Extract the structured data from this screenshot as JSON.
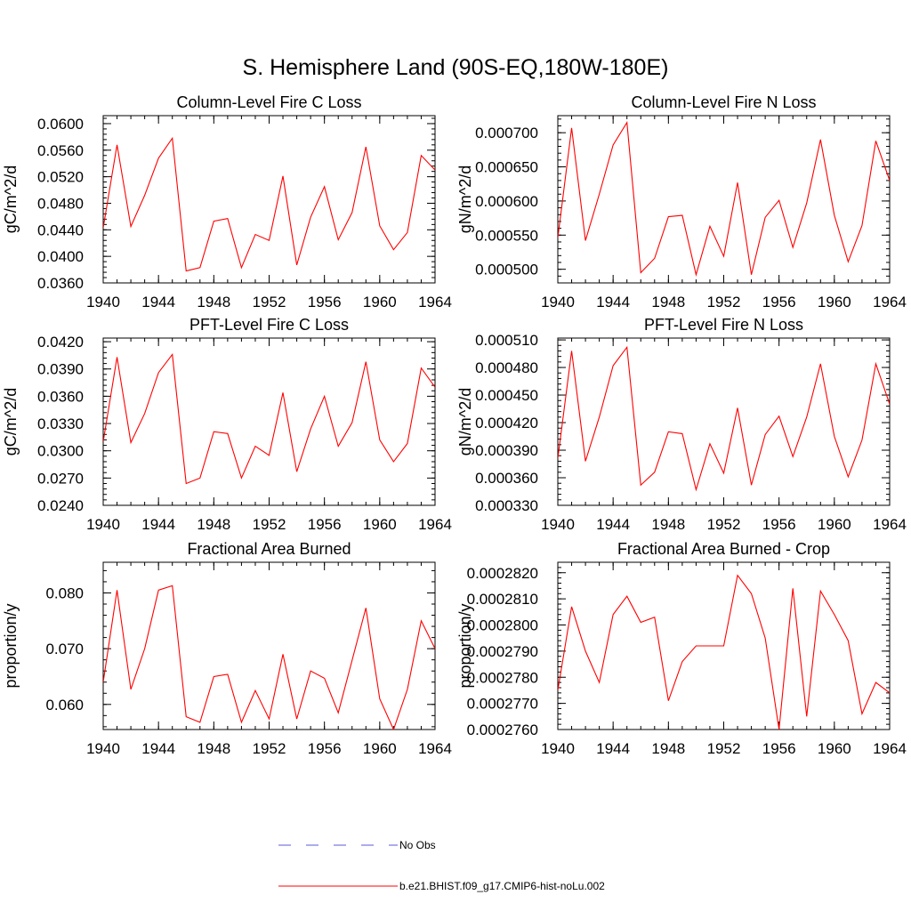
{
  "figure": {
    "title": "S. Hemisphere Land (90S-EQ,180W-180E)"
  },
  "colors": {
    "model": "#ff0000",
    "obs": "#5a5ad8",
    "axis": "#000000"
  },
  "legend": {
    "placement": "bottom-center",
    "entries": [
      {
        "label": "No Obs",
        "style": "dashed",
        "color": "#5a5ad8"
      },
      {
        "label": "b.e21.BHIST.f09_g17.CMIP6-hist-noLu.002",
        "style": "solid",
        "color": "#ff0000"
      }
    ]
  },
  "chart_data": [
    {
      "type": "line",
      "title": "Column-Level Fire C Loss",
      "xlabel": "",
      "ylabel": "gC/m^2/d",
      "xlim": [
        1940,
        1964
      ],
      "ylim": [
        0.036,
        0.0612
      ],
      "xticks": [
        1940,
        1944,
        1948,
        1952,
        1956,
        1960,
        1964
      ],
      "xtick_labels": [
        "1940",
        "1944",
        "1948",
        "1952",
        "1956",
        "1960",
        "1964"
      ],
      "yticks": [
        0.036,
        0.04,
        0.044,
        0.048,
        0.052,
        0.056,
        0.06
      ],
      "ytick_labels": [
        "0.0360",
        "0.0400",
        "0.0440",
        "0.0480",
        "0.0520",
        "0.0560",
        "0.0600"
      ],
      "x": [
        1940,
        1941,
        1942,
        1943,
        1944,
        1945,
        1946,
        1947,
        1948,
        1949,
        1950,
        1951,
        1952,
        1953,
        1954,
        1955,
        1956,
        1957,
        1958,
        1959,
        1960,
        1961,
        1962,
        1963,
        1964
      ],
      "series": [
        {
          "name": "b.e21.BHIST.f09_g17.CMIP6-hist-noLu.002",
          "values": [
            0.0443,
            0.0568,
            0.0445,
            0.0492,
            0.0548,
            0.0578,
            0.0378,
            0.0383,
            0.0453,
            0.0457,
            0.0383,
            0.0433,
            0.0424,
            0.0521,
            0.0387,
            0.0459,
            0.0505,
            0.0425,
            0.0466,
            0.0565,
            0.0446,
            0.041,
            0.0436,
            0.0552,
            0.053
          ]
        }
      ]
    },
    {
      "type": "line",
      "title": "Column-Level Fire N Loss",
      "xlabel": "",
      "ylabel": "gN/m^2/d",
      "xlim": [
        1940,
        1964
      ],
      "ylim": [
        0.00048,
        0.000725
      ],
      "xticks": [
        1940,
        1944,
        1948,
        1952,
        1956,
        1960,
        1964
      ],
      "xtick_labels": [
        "1940",
        "1944",
        "1948",
        "1952",
        "1956",
        "1960",
        "1964"
      ],
      "yticks": [
        0.0005,
        0.00055,
        0.0006,
        0.00065,
        0.0007
      ],
      "ytick_labels": [
        "0.000500",
        "0.000550",
        "0.000600",
        "0.000650",
        "0.000700"
      ],
      "x": [
        1940,
        1941,
        1942,
        1943,
        1944,
        1945,
        1946,
        1947,
        1948,
        1949,
        1950,
        1951,
        1952,
        1953,
        1954,
        1955,
        1956,
        1957,
        1958,
        1959,
        1960,
        1961,
        1962,
        1963,
        1964
      ],
      "series": [
        {
          "name": "b.e21.BHIST.f09_g17.CMIP6-hist-noLu.002",
          "values": [
            0.000546,
            0.000707,
            0.000542,
            0.00061,
            0.000682,
            0.000715,
            0.000495,
            0.000516,
            0.000577,
            0.000579,
            0.000492,
            0.000563,
            0.000519,
            0.000627,
            0.000492,
            0.000576,
            0.000601,
            0.000532,
            0.000597,
            0.00069,
            0.000579,
            0.000511,
            0.000564,
            0.000688,
            0.00063
          ]
        }
      ]
    },
    {
      "type": "line",
      "title": "PFT-Level Fire C Loss",
      "xlabel": "",
      "ylabel": "gC/m^2/d",
      "xlim": [
        1940,
        1964
      ],
      "ylim": [
        0.024,
        0.0424
      ],
      "xticks": [
        1940,
        1944,
        1948,
        1952,
        1956,
        1960,
        1964
      ],
      "xtick_labels": [
        "1940",
        "1944",
        "1948",
        "1952",
        "1956",
        "1960",
        "1964"
      ],
      "yticks": [
        0.024,
        0.027,
        0.03,
        0.033,
        0.036,
        0.039,
        0.042
      ],
      "ytick_labels": [
        "0.0240",
        "0.0270",
        "0.0300",
        "0.0330",
        "0.0360",
        "0.0390",
        "0.0420"
      ],
      "x": [
        1940,
        1941,
        1942,
        1943,
        1944,
        1945,
        1946,
        1947,
        1948,
        1949,
        1950,
        1951,
        1952,
        1953,
        1954,
        1955,
        1956,
        1957,
        1958,
        1959,
        1960,
        1961,
        1962,
        1963,
        1964
      ],
      "series": [
        {
          "name": "b.e21.BHIST.f09_g17.CMIP6-hist-noLu.002",
          "values": [
            0.031,
            0.0403,
            0.0309,
            0.0341,
            0.0386,
            0.0406,
            0.0264,
            0.027,
            0.0321,
            0.0319,
            0.027,
            0.0305,
            0.0295,
            0.0364,
            0.0277,
            0.0324,
            0.036,
            0.0305,
            0.0331,
            0.0398,
            0.0312,
            0.0288,
            0.0308,
            0.0391,
            0.037
          ]
        }
      ]
    },
    {
      "type": "line",
      "title": "PFT-Level Fire N Loss",
      "xlabel": "",
      "ylabel": "gN/m^2/d",
      "xlim": [
        1940,
        1964
      ],
      "ylim": [
        0.00033,
        0.000512
      ],
      "xticks": [
        1940,
        1944,
        1948,
        1952,
        1956,
        1960,
        1964
      ],
      "xtick_labels": [
        "1940",
        "1944",
        "1948",
        "1952",
        "1956",
        "1960",
        "1964"
      ],
      "yticks": [
        0.00033,
        0.00036,
        0.00039,
        0.00042,
        0.00045,
        0.00048,
        0.00051
      ],
      "ytick_labels": [
        "0.000330",
        "0.000360",
        "0.000390",
        "0.000420",
        "0.000450",
        "0.000480",
        "0.000510"
      ],
      "x": [
        1940,
        1941,
        1942,
        1943,
        1944,
        1945,
        1946,
        1947,
        1948,
        1949,
        1950,
        1951,
        1952,
        1953,
        1954,
        1955,
        1956,
        1957,
        1958,
        1959,
        1960,
        1961,
        1962,
        1963,
        1964
      ],
      "series": [
        {
          "name": "b.e21.BHIST.f09_g17.CMIP6-hist-noLu.002",
          "values": [
            0.000381,
            0.000498,
            0.000378,
            0.000426,
            0.000482,
            0.000502,
            0.000352,
            0.000366,
            0.00041,
            0.000408,
            0.000347,
            0.000397,
            0.000365,
            0.000436,
            0.000352,
            0.000407,
            0.000427,
            0.000383,
            0.000426,
            0.000484,
            0.000405,
            0.000361,
            0.000401,
            0.000484,
            0.00044
          ]
        }
      ]
    },
    {
      "type": "line",
      "title": "Fractional Area Burned",
      "xlabel": "",
      "ylabel": "proportion/y",
      "xlim": [
        1940,
        1964
      ],
      "ylim": [
        0.0555,
        0.0855
      ],
      "xticks": [
        1940,
        1944,
        1948,
        1952,
        1956,
        1960,
        1964
      ],
      "xtick_labels": [
        "1940",
        "1944",
        "1948",
        "1952",
        "1956",
        "1960",
        "1964"
      ],
      "yticks": [
        0.06,
        0.07,
        0.08
      ],
      "ytick_labels": [
        "0.060",
        "0.070",
        "0.080"
      ],
      "x": [
        1940,
        1941,
        1942,
        1943,
        1944,
        1945,
        1946,
        1947,
        1948,
        1949,
        1950,
        1951,
        1952,
        1953,
        1954,
        1955,
        1956,
        1957,
        1958,
        1959,
        1960,
        1961,
        1962,
        1963,
        1964
      ],
      "series": [
        {
          "name": "b.e21.BHIST.f09_g17.CMIP6-hist-noLu.002",
          "values": [
            0.064,
            0.0805,
            0.0627,
            0.07,
            0.0805,
            0.0813,
            0.0578,
            0.0568,
            0.065,
            0.0654,
            0.0568,
            0.0625,
            0.0574,
            0.069,
            0.0574,
            0.066,
            0.0647,
            0.0585,
            0.0679,
            0.0773,
            0.061,
            0.0555,
            0.0627,
            0.075,
            0.07
          ]
        }
      ]
    },
    {
      "type": "line",
      "title": "Fractional Area Burned - Crop",
      "xlabel": "",
      "ylabel": "proportion/y",
      "xlim": [
        1940,
        1964
      ],
      "ylim": [
        0.000276,
        0.0002824
      ],
      "xticks": [
        1940,
        1944,
        1948,
        1952,
        1956,
        1960,
        1964
      ],
      "xtick_labels": [
        "1940",
        "1944",
        "1948",
        "1952",
        "1956",
        "1960",
        "1964"
      ],
      "yticks": [
        0.000276,
        0.000277,
        0.000278,
        0.000279,
        0.00028,
        0.000281,
        0.000282
      ],
      "ytick_labels": [
        "0.0002760",
        "0.0002770",
        "0.0002780",
        "0.0002790",
        "0.0002800",
        "0.0002810",
        "0.0002820"
      ],
      "x": [
        1940,
        1941,
        1942,
        1943,
        1944,
        1945,
        1946,
        1947,
        1948,
        1949,
        1950,
        1951,
        1952,
        1953,
        1954,
        1955,
        1956,
        1957,
        1958,
        1959,
        1960,
        1961,
        1962,
        1963,
        1964
      ],
      "series": [
        {
          "name": "b.e21.BHIST.f09_g17.CMIP6-hist-noLu.002",
          "values": [
            0.0002775,
            0.0002807,
            0.000279,
            0.0002778,
            0.0002804,
            0.0002811,
            0.0002801,
            0.0002803,
            0.0002771,
            0.0002786,
            0.0002792,
            0.0002792,
            0.0002792,
            0.0002819,
            0.0002812,
            0.0002795,
            0.000276,
            0.0002814,
            0.0002765,
            0.0002813,
            0.0002804,
            0.0002794,
            0.0002766,
            0.0002778,
            0.0002774
          ]
        }
      ]
    }
  ]
}
